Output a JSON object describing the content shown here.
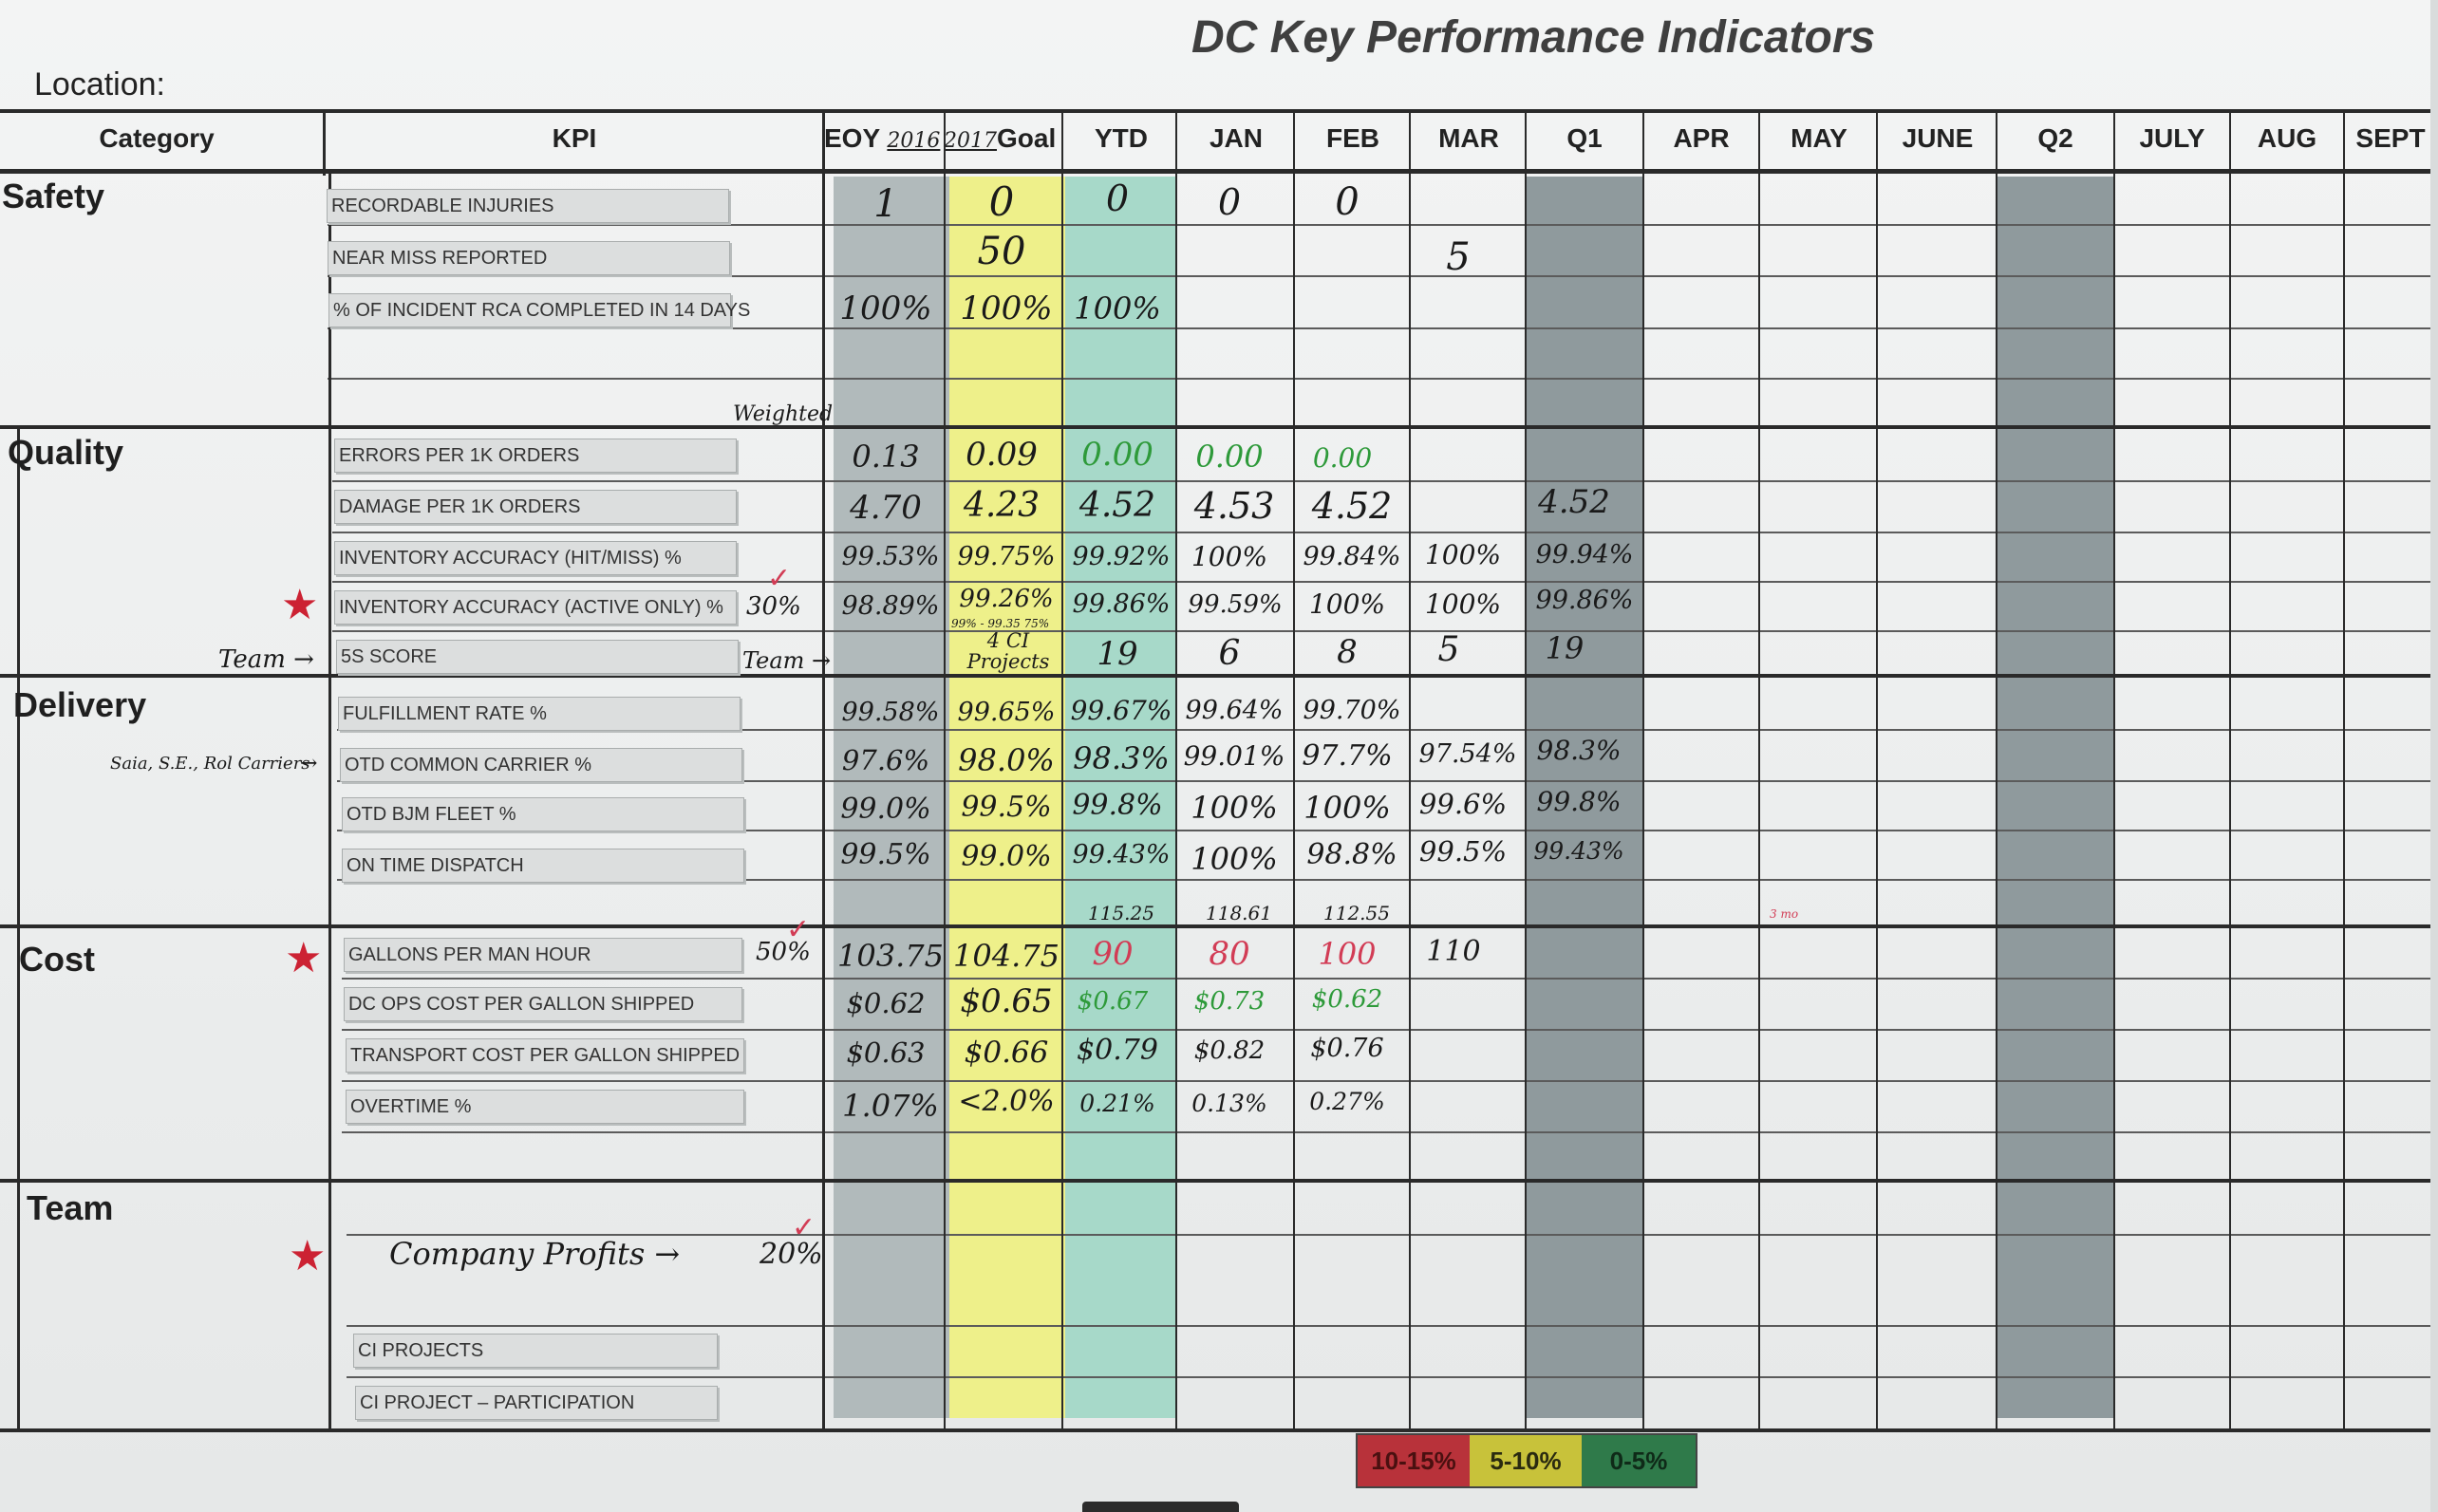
{
  "title": "DC Key Performance Indicators",
  "location_label": "Location:",
  "headers": {
    "category": "Category",
    "kpi": "KPI",
    "eoy_prefix": "EOY",
    "eoy_year": "2016",
    "goal_year": "2017",
    "goal_suffix": "Goal",
    "months": [
      "YTD",
      "JAN",
      "FEB",
      "MAR",
      "Q1",
      "APR",
      "MAY",
      "JUNE",
      "Q2",
      "JULY",
      "AUG",
      "SEPT"
    ]
  },
  "categories": {
    "safety": "Safety",
    "quality": "Quality",
    "delivery": "Delivery",
    "cost": "Cost",
    "team": "Team"
  },
  "kpis": {
    "recordable_injuries": "RECORDABLE INJURIES",
    "near_miss": "NEAR MISS REPORTED",
    "incident_rca": "% OF INCIDENT RCA COMPLETED IN 14 DAYS",
    "errors": "ERRORS PER 1K ORDERS",
    "damage": "DAMAGE PER 1K ORDERS",
    "inv_hit": "INVENTORY ACCURACY (HIT/MISS) %",
    "inv_active": "INVENTORY ACCURACY (ACTIVE ONLY) %",
    "five_s": "5S SCORE",
    "fulfillment": "FULFILLMENT RATE %",
    "otd_common": "OTD COMMON CARRIER %",
    "otd_bjm": "OTD BJM FLEET %",
    "on_time": "ON TIME DISPATCH",
    "gallons": "GALLONS PER MAN HOUR",
    "dc_ops_cost": "DC OPS COST PER GALLON SHIPPED",
    "transport_cost": "TRANSPORT COST PER GALLON SHIPPED",
    "overtime": "OVERTIME %",
    "ci_projects": "CI PROJECTS",
    "ci_participation": "CI PROJECT – PARTICIPATION"
  },
  "values": {
    "recordable_injuries": {
      "eoy": "1",
      "goal": "0",
      "ytd": "0",
      "jan": "0",
      "feb": "0"
    },
    "near_miss": {
      "goal": "50",
      "mar": "5"
    },
    "incident_rca": {
      "eoy": "100%",
      "goal": "100%",
      "ytd": "100%"
    },
    "errors": {
      "eoy": "0.13",
      "goal": "0.09",
      "ytd": "0.00",
      "jan": "0.00",
      "feb": "0.00"
    },
    "damage": {
      "eoy": "4.70",
      "goal": "4.23",
      "ytd": "4.52",
      "jan": "4.53",
      "feb": "4.52",
      "q1": "4.52"
    },
    "inv_hit": {
      "eoy": "99.53%",
      "goal": "99.75%",
      "ytd": "99.92%",
      "jan": "100%",
      "feb": "99.84%",
      "mar": "100%",
      "q1": "99.94%"
    },
    "inv_active": {
      "eoy": "98.89%",
      "goal": "99.26%",
      "ytd": "99.86%",
      "jan": "99.59%",
      "feb": "100%",
      "mar": "100%",
      "q1": "99.86%"
    },
    "five_s": {
      "goal": "4 CI Projects",
      "ytd": "19",
      "jan": "6",
      "feb": "8",
      "mar": "5",
      "q1": "19"
    },
    "fulfillment": {
      "eoy": "99.58%",
      "goal": "99.65%",
      "ytd": "99.67%",
      "jan": "99.64%",
      "feb": "99.70%"
    },
    "otd_common": {
      "eoy": "97.6%",
      "goal": "98.0%",
      "ytd": "98.3%",
      "jan": "99.01%",
      "feb": "97.7%",
      "mar": "97.54%",
      "q1": "98.3%"
    },
    "otd_bjm": {
      "eoy": "99.0%",
      "goal": "99.5%",
      "ytd": "99.8%",
      "jan": "100%",
      "feb": "100%",
      "mar": "99.6%",
      "q1": "99.8%"
    },
    "on_time": {
      "eoy": "99.5%",
      "goal": "99.0%",
      "ytd": "99.43%",
      "jan": "100%",
      "feb": "98.8%",
      "mar": "99.5%",
      "q1": "99.43%"
    },
    "gallons": {
      "eoy": "103.75",
      "goal": "104.75",
      "ytd": "90",
      "jan": "80",
      "feb": "100",
      "mar": "110"
    },
    "dc_ops_cost": {
      "eoy": "$0.62",
      "goal": "$0.65",
      "ytd": "$0.67",
      "jan": "$0.73",
      "feb": "$0.62"
    },
    "transport_cost": {
      "eoy": "$0.63",
      "goal": "$0.66",
      "ytd": "$0.79",
      "jan": "$0.82",
      "feb": "$0.76"
    },
    "overtime": {
      "eoy": "1.07%",
      "goal": "<2.0%",
      "ytd": "0.21%",
      "jan": "0.13%",
      "feb": "0.27%"
    }
  },
  "notes": {
    "weighted": "Weighted",
    "team_left": "Team →",
    "team_right": "Team →",
    "pct_30": "30%",
    "pct_50": "50%",
    "pct_20": "20%",
    "goal_sub": "99% - 99.35 75%",
    "carriers": "Saia, S.E., Rol Carriers",
    "above_ytd": "115.25",
    "above_jan": "118.61",
    "above_feb": "112.55",
    "may_small": "3 mo",
    "company_profits": "Company Profits →"
  },
  "legend": [
    {
      "label": "10-15%",
      "bg": "#b8323a",
      "fg": "#4a1010"
    },
    {
      "label": "5-10%",
      "bg": "#c8c23a",
      "fg": "#2a2a10"
    },
    {
      "label": "0-5%",
      "bg": "#2f7a4a",
      "fg": "#0f2a18"
    }
  ],
  "colors": {
    "goal_col": "#eef08a",
    "ytd_col": "#a7d9c9",
    "shade_col": "#aab2b4",
    "dark_shade_col": "#7f8a8d",
    "green_ink": "#2e9a3a",
    "red_ink": "#d23c55",
    "star": "#cc2233"
  }
}
